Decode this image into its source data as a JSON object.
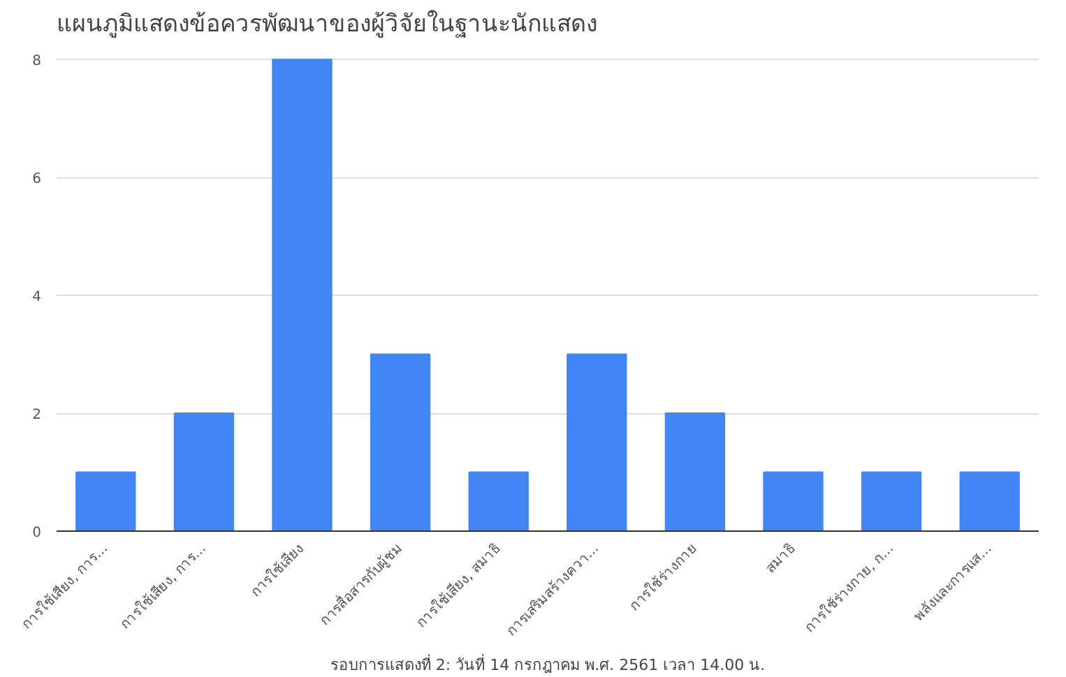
{
  "chart_data": {
    "type": "bar",
    "title": "แผนภูมิแสดงข้อควรพัฒนาของผู้วิจัยในฐานะนักแสดง",
    "xlabel": "รอบการแสดงที่ 2: วันที่ 14 กรกฎาคม พ.ศ. 2561 เวลา 14.00 น.",
    "categories": [
      "การใช้เสียง, การ...",
      "การใช้เสียง, การ...",
      "การใช้เสียง",
      "การสื่อสารกับผู้ชม",
      "การใช้เสียง, สมาธิ",
      "การเสริมสร้างควา...",
      "การใช้ร่างกาย",
      "สมาธิ",
      "การใช้ร่างกาย, ก...",
      "พลังและการแส..."
    ],
    "values": [
      1,
      2,
      8,
      3,
      1,
      3,
      2,
      1,
      1,
      1
    ],
    "color": "#4285f4",
    "ylim": [
      0,
      8
    ],
    "yticks": [
      0,
      2,
      4,
      6,
      8
    ],
    "grid": "y"
  }
}
